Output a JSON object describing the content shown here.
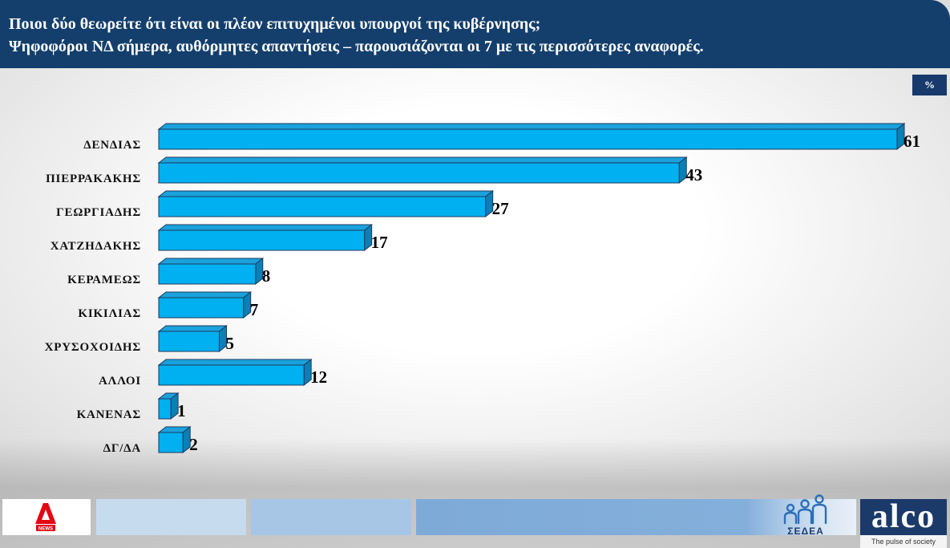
{
  "chart_data": {
    "type": "bar",
    "orientation": "horizontal",
    "title": "Ποιοι δύο θεωρείτε ότι είναι οι πλέον επιτυχημένοι υπουργοί της κυβέρνησης;",
    "subtitle": "Ψηφοφόροι ΝΔ σήμερα, αυθόρμητες απαντήσεις – παρουσιάζονται οι 7 με τις περισσότερες αναφορές.",
    "unit": "%",
    "categories": [
      "ΔΕΝΔΙΑΣ",
      "ΠΙΕΡΡΑΚΑΚΗΣ",
      "ΓΕΩΡΓΙΑΔΗΣ",
      "ΧΑΤΖΗΔΑΚΗΣ",
      "ΚΕΡΑΜΕΩΣ",
      "ΚΙΚΙΛΙΑΣ",
      "ΧΡΥΣΟΧΟΙΔΗΣ",
      "ΑΛΛΟΙ",
      "ΚΑΝΕΝΑΣ",
      "ΔΓ/ΔΑ"
    ],
    "values": [
      61,
      43,
      27,
      17,
      8,
      7,
      5,
      12,
      1,
      2
    ],
    "data_labels": true,
    "xlim": [
      0,
      61
    ],
    "grid": false,
    "legend": "none"
  },
  "footer": {
    "alpha_logo_text": "NEWS",
    "sedea_text": "ΣΕΔΕΑ",
    "alco_text": "alco",
    "alco_tagline": "The pulse of society",
    "icons": [
      "alpha-news-logo",
      "sedea-logo",
      "alco-logo"
    ]
  },
  "colors": {
    "header_bg": "#143f6c",
    "badge_bg": "#17396b",
    "bar_front": "#00b0f0",
    "bar_top": "#1aa2dc",
    "bar_side": "#0b7fb6",
    "bar_outline": "#1d3a5e",
    "alpha_red": "#e30613",
    "sedea_blue": "#2d6fb8",
    "alco_bg": "#1b3a6a"
  }
}
